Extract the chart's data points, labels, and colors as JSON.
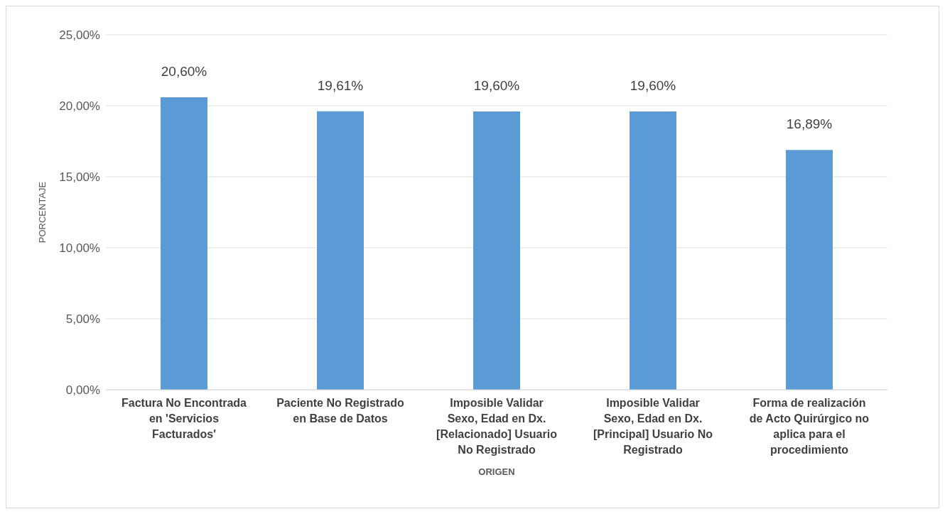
{
  "chart_data": {
    "type": "bar",
    "xlabel": "ORIGEN",
    "ylabel": "PORCENTAJE",
    "categories": [
      "Factura No Encontrada en 'Servicios Facturados'",
      "Paciente No Registrado en Base de Datos",
      "Imposible Validar Sexo, Edad en Dx. [Relacionado] Usuario No Registrado",
      "Imposible Validar Sexo, Edad en Dx. [Principal] Usuario No Registrado",
      "Forma de realización de Acto Quirúrgico no aplica para el procedimiento"
    ],
    "values": [
      20.6,
      19.61,
      19.6,
      19.6,
      16.89
    ],
    "value_labels": [
      "20,60%",
      "19,61%",
      "19,60%",
      "19,60%",
      "16,89%"
    ],
    "color": "#5b9bd5",
    "ylim": [
      0,
      25
    ],
    "yticks": [
      {
        "value": 0,
        "label": "0,00%"
      },
      {
        "value": 5,
        "label": "5,00%"
      },
      {
        "value": 10,
        "label": "10,00%"
      },
      {
        "value": 15,
        "label": "15,00%"
      },
      {
        "value": 20,
        "label": "20,00%"
      },
      {
        "value": 25,
        "label": "25,00%"
      }
    ],
    "grid": "y",
    "legend": false
  }
}
